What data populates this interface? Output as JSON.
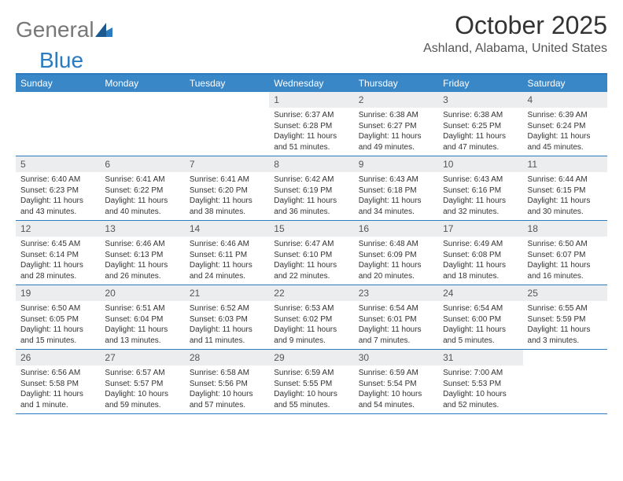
{
  "logo": {
    "part1": "General",
    "part2": "Blue"
  },
  "title": "October 2025",
  "location": "Ashland, Alabama, United States",
  "colors": {
    "accent": "#3a87c8",
    "accent_border": "#2a7bbf",
    "daynum_bg": "#ebedef",
    "text": "#333333"
  },
  "weekdays": [
    "Sunday",
    "Monday",
    "Tuesday",
    "Wednesday",
    "Thursday",
    "Friday",
    "Saturday"
  ],
  "weeks": [
    [
      {
        "n": "",
        "lines": [
          "",
          "",
          "",
          ""
        ]
      },
      {
        "n": "",
        "lines": [
          "",
          "",
          "",
          ""
        ]
      },
      {
        "n": "",
        "lines": [
          "",
          "",
          "",
          ""
        ]
      },
      {
        "n": "1",
        "lines": [
          "Sunrise: 6:37 AM",
          "Sunset: 6:28 PM",
          "Daylight: 11 hours",
          "and 51 minutes."
        ]
      },
      {
        "n": "2",
        "lines": [
          "Sunrise: 6:38 AM",
          "Sunset: 6:27 PM",
          "Daylight: 11 hours",
          "and 49 minutes."
        ]
      },
      {
        "n": "3",
        "lines": [
          "Sunrise: 6:38 AM",
          "Sunset: 6:25 PM",
          "Daylight: 11 hours",
          "and 47 minutes."
        ]
      },
      {
        "n": "4",
        "lines": [
          "Sunrise: 6:39 AM",
          "Sunset: 6:24 PM",
          "Daylight: 11 hours",
          "and 45 minutes."
        ]
      }
    ],
    [
      {
        "n": "5",
        "lines": [
          "Sunrise: 6:40 AM",
          "Sunset: 6:23 PM",
          "Daylight: 11 hours",
          "and 43 minutes."
        ]
      },
      {
        "n": "6",
        "lines": [
          "Sunrise: 6:41 AM",
          "Sunset: 6:22 PM",
          "Daylight: 11 hours",
          "and 40 minutes."
        ]
      },
      {
        "n": "7",
        "lines": [
          "Sunrise: 6:41 AM",
          "Sunset: 6:20 PM",
          "Daylight: 11 hours",
          "and 38 minutes."
        ]
      },
      {
        "n": "8",
        "lines": [
          "Sunrise: 6:42 AM",
          "Sunset: 6:19 PM",
          "Daylight: 11 hours",
          "and 36 minutes."
        ]
      },
      {
        "n": "9",
        "lines": [
          "Sunrise: 6:43 AM",
          "Sunset: 6:18 PM",
          "Daylight: 11 hours",
          "and 34 minutes."
        ]
      },
      {
        "n": "10",
        "lines": [
          "Sunrise: 6:43 AM",
          "Sunset: 6:16 PM",
          "Daylight: 11 hours",
          "and 32 minutes."
        ]
      },
      {
        "n": "11",
        "lines": [
          "Sunrise: 6:44 AM",
          "Sunset: 6:15 PM",
          "Daylight: 11 hours",
          "and 30 minutes."
        ]
      }
    ],
    [
      {
        "n": "12",
        "lines": [
          "Sunrise: 6:45 AM",
          "Sunset: 6:14 PM",
          "Daylight: 11 hours",
          "and 28 minutes."
        ]
      },
      {
        "n": "13",
        "lines": [
          "Sunrise: 6:46 AM",
          "Sunset: 6:13 PM",
          "Daylight: 11 hours",
          "and 26 minutes."
        ]
      },
      {
        "n": "14",
        "lines": [
          "Sunrise: 6:46 AM",
          "Sunset: 6:11 PM",
          "Daylight: 11 hours",
          "and 24 minutes."
        ]
      },
      {
        "n": "15",
        "lines": [
          "Sunrise: 6:47 AM",
          "Sunset: 6:10 PM",
          "Daylight: 11 hours",
          "and 22 minutes."
        ]
      },
      {
        "n": "16",
        "lines": [
          "Sunrise: 6:48 AM",
          "Sunset: 6:09 PM",
          "Daylight: 11 hours",
          "and 20 minutes."
        ]
      },
      {
        "n": "17",
        "lines": [
          "Sunrise: 6:49 AM",
          "Sunset: 6:08 PM",
          "Daylight: 11 hours",
          "and 18 minutes."
        ]
      },
      {
        "n": "18",
        "lines": [
          "Sunrise: 6:50 AM",
          "Sunset: 6:07 PM",
          "Daylight: 11 hours",
          "and 16 minutes."
        ]
      }
    ],
    [
      {
        "n": "19",
        "lines": [
          "Sunrise: 6:50 AM",
          "Sunset: 6:05 PM",
          "Daylight: 11 hours",
          "and 15 minutes."
        ]
      },
      {
        "n": "20",
        "lines": [
          "Sunrise: 6:51 AM",
          "Sunset: 6:04 PM",
          "Daylight: 11 hours",
          "and 13 minutes."
        ]
      },
      {
        "n": "21",
        "lines": [
          "Sunrise: 6:52 AM",
          "Sunset: 6:03 PM",
          "Daylight: 11 hours",
          "and 11 minutes."
        ]
      },
      {
        "n": "22",
        "lines": [
          "Sunrise: 6:53 AM",
          "Sunset: 6:02 PM",
          "Daylight: 11 hours",
          "and 9 minutes."
        ]
      },
      {
        "n": "23",
        "lines": [
          "Sunrise: 6:54 AM",
          "Sunset: 6:01 PM",
          "Daylight: 11 hours",
          "and 7 minutes."
        ]
      },
      {
        "n": "24",
        "lines": [
          "Sunrise: 6:54 AM",
          "Sunset: 6:00 PM",
          "Daylight: 11 hours",
          "and 5 minutes."
        ]
      },
      {
        "n": "25",
        "lines": [
          "Sunrise: 6:55 AM",
          "Sunset: 5:59 PM",
          "Daylight: 11 hours",
          "and 3 minutes."
        ]
      }
    ],
    [
      {
        "n": "26",
        "lines": [
          "Sunrise: 6:56 AM",
          "Sunset: 5:58 PM",
          "Daylight: 11 hours",
          "and 1 minute."
        ]
      },
      {
        "n": "27",
        "lines": [
          "Sunrise: 6:57 AM",
          "Sunset: 5:57 PM",
          "Daylight: 10 hours",
          "and 59 minutes."
        ]
      },
      {
        "n": "28",
        "lines": [
          "Sunrise: 6:58 AM",
          "Sunset: 5:56 PM",
          "Daylight: 10 hours",
          "and 57 minutes."
        ]
      },
      {
        "n": "29",
        "lines": [
          "Sunrise: 6:59 AM",
          "Sunset: 5:55 PM",
          "Daylight: 10 hours",
          "and 55 minutes."
        ]
      },
      {
        "n": "30",
        "lines": [
          "Sunrise: 6:59 AM",
          "Sunset: 5:54 PM",
          "Daylight: 10 hours",
          "and 54 minutes."
        ]
      },
      {
        "n": "31",
        "lines": [
          "Sunrise: 7:00 AM",
          "Sunset: 5:53 PM",
          "Daylight: 10 hours",
          "and 52 minutes."
        ]
      },
      {
        "n": "",
        "lines": [
          "",
          "",
          "",
          ""
        ]
      }
    ]
  ]
}
